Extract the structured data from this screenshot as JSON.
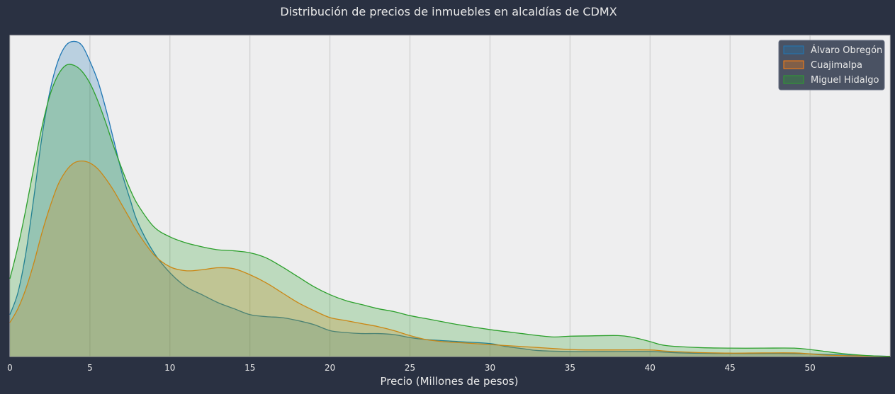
{
  "chart_data": {
    "type": "area",
    "title": "Distribución de precios de inmuebles en alcaldías de CDMX",
    "xlabel": "Precio (Millones de pesos)",
    "ylabel": "",
    "xlim": [
      0,
      55
    ],
    "ylim": [
      0,
      0.161
    ],
    "x_ticks": [
      "0",
      "5",
      "10",
      "15",
      "20",
      "25",
      "30",
      "35",
      "40",
      "45",
      "50"
    ],
    "grid": "vertical",
    "legend_position": "top-right",
    "series": [
      {
        "name": "Álvaro Obregón",
        "color": "#1f77b4",
        "points": [
          [
            0,
            0.021
          ],
          [
            0.5,
            0.032
          ],
          [
            1,
            0.052
          ],
          [
            1.5,
            0.08
          ],
          [
            2,
            0.11
          ],
          [
            2.5,
            0.133
          ],
          [
            3,
            0.148
          ],
          [
            3.5,
            0.156
          ],
          [
            4,
            0.158
          ],
          [
            4.5,
            0.156
          ],
          [
            5,
            0.148
          ],
          [
            5.5,
            0.138
          ],
          [
            6,
            0.124
          ],
          [
            6.5,
            0.108
          ],
          [
            7,
            0.092
          ],
          [
            7.5,
            0.079
          ],
          [
            8,
            0.067
          ],
          [
            9,
            0.052
          ],
          [
            10,
            0.042
          ],
          [
            11,
            0.035
          ],
          [
            12,
            0.031
          ],
          [
            13,
            0.027
          ],
          [
            14,
            0.024
          ],
          [
            15,
            0.021
          ],
          [
            16,
            0.02
          ],
          [
            17,
            0.0195
          ],
          [
            18,
            0.018
          ],
          [
            19,
            0.016
          ],
          [
            20,
            0.013
          ],
          [
            21,
            0.012
          ],
          [
            22,
            0.0115
          ],
          [
            23,
            0.0115
          ],
          [
            24,
            0.011
          ],
          [
            25,
            0.0095
          ],
          [
            26,
            0.0085
          ],
          [
            28,
            0.0075
          ],
          [
            30,
            0.0065
          ],
          [
            31,
            0.005
          ],
          [
            32,
            0.004
          ],
          [
            33,
            0.003
          ],
          [
            35,
            0.0025
          ],
          [
            37,
            0.0025
          ],
          [
            40,
            0.0025
          ],
          [
            42,
            0.0018
          ],
          [
            45,
            0.0015
          ],
          [
            48,
            0.0015
          ],
          [
            50,
            0.0013
          ],
          [
            52,
            0.0008
          ],
          [
            54,
            0.0003
          ],
          [
            55,
            0.0001
          ]
        ]
      },
      {
        "name": "Cuajimalpa",
        "color": "#ff7f0e",
        "points": [
          [
            0,
            0.017
          ],
          [
            0.5,
            0.024
          ],
          [
            1,
            0.034
          ],
          [
            1.5,
            0.047
          ],
          [
            2,
            0.062
          ],
          [
            2.5,
            0.075
          ],
          [
            3,
            0.086
          ],
          [
            3.5,
            0.093
          ],
          [
            4,
            0.097
          ],
          [
            4.5,
            0.098
          ],
          [
            5,
            0.097
          ],
          [
            5.5,
            0.094
          ],
          [
            6,
            0.089
          ],
          [
            6.5,
            0.083
          ],
          [
            7,
            0.076
          ],
          [
            7.5,
            0.069
          ],
          [
            8,
            0.062
          ],
          [
            9,
            0.051
          ],
          [
            10,
            0.045
          ],
          [
            11,
            0.043
          ],
          [
            12,
            0.0435
          ],
          [
            13,
            0.0445
          ],
          [
            14,
            0.044
          ],
          [
            15,
            0.041
          ],
          [
            16,
            0.037
          ],
          [
            17,
            0.032
          ],
          [
            18,
            0.027
          ],
          [
            19,
            0.023
          ],
          [
            20,
            0.0195
          ],
          [
            21,
            0.018
          ],
          [
            22,
            0.0165
          ],
          [
            23,
            0.015
          ],
          [
            24,
            0.013
          ],
          [
            25,
            0.0105
          ],
          [
            26,
            0.0085
          ],
          [
            27,
            0.0075
          ],
          [
            28,
            0.007
          ],
          [
            30,
            0.006
          ],
          [
            32,
            0.005
          ],
          [
            34,
            0.004
          ],
          [
            35,
            0.0035
          ],
          [
            36,
            0.0033
          ],
          [
            38,
            0.0033
          ],
          [
            40,
            0.0033
          ],
          [
            41,
            0.0027
          ],
          [
            43,
            0.002
          ],
          [
            45,
            0.0017
          ],
          [
            47,
            0.0018
          ],
          [
            49,
            0.0018
          ],
          [
            50,
            0.0013
          ],
          [
            51,
            0.0007
          ],
          [
            53,
            0.0003
          ],
          [
            55,
            0.0001
          ]
        ]
      },
      {
        "name": "Miguel Hidalgo",
        "color": "#2ca02c",
        "points": [
          [
            0,
            0.039
          ],
          [
            0.5,
            0.055
          ],
          [
            1,
            0.074
          ],
          [
            1.5,
            0.095
          ],
          [
            2,
            0.115
          ],
          [
            2.5,
            0.131
          ],
          [
            3,
            0.141
          ],
          [
            3.5,
            0.146
          ],
          [
            4,
            0.146
          ],
          [
            4.5,
            0.143
          ],
          [
            5,
            0.137
          ],
          [
            5.5,
            0.128
          ],
          [
            6,
            0.117
          ],
          [
            6.5,
            0.105
          ],
          [
            7,
            0.094
          ],
          [
            7.5,
            0.084
          ],
          [
            8,
            0.076
          ],
          [
            9,
            0.065
          ],
          [
            10,
            0.06
          ],
          [
            11,
            0.057
          ],
          [
            12,
            0.055
          ],
          [
            13,
            0.0535
          ],
          [
            14,
            0.053
          ],
          [
            15,
            0.052
          ],
          [
            16,
            0.0495
          ],
          [
            17,
            0.045
          ],
          [
            18,
            0.04
          ],
          [
            19,
            0.035
          ],
          [
            20,
            0.031
          ],
          [
            21,
            0.028
          ],
          [
            22,
            0.026
          ],
          [
            23,
            0.024
          ],
          [
            24,
            0.0225
          ],
          [
            25,
            0.0205
          ],
          [
            26,
            0.019
          ],
          [
            28,
            0.016
          ],
          [
            30,
            0.0135
          ],
          [
            32,
            0.0115
          ],
          [
            33,
            0.0105
          ],
          [
            34,
            0.0098
          ],
          [
            35,
            0.0102
          ],
          [
            36,
            0.0103
          ],
          [
            38,
            0.0105
          ],
          [
            39,
            0.0095
          ],
          [
            40,
            0.0075
          ],
          [
            41,
            0.0055
          ],
          [
            43,
            0.0045
          ],
          [
            45,
            0.0042
          ],
          [
            47,
            0.0042
          ],
          [
            49,
            0.0042
          ],
          [
            50,
            0.0035
          ],
          [
            51,
            0.0025
          ],
          [
            52,
            0.0015
          ],
          [
            53,
            0.0008
          ],
          [
            54,
            0.0003
          ],
          [
            55,
            0.0001
          ]
        ]
      }
    ]
  }
}
